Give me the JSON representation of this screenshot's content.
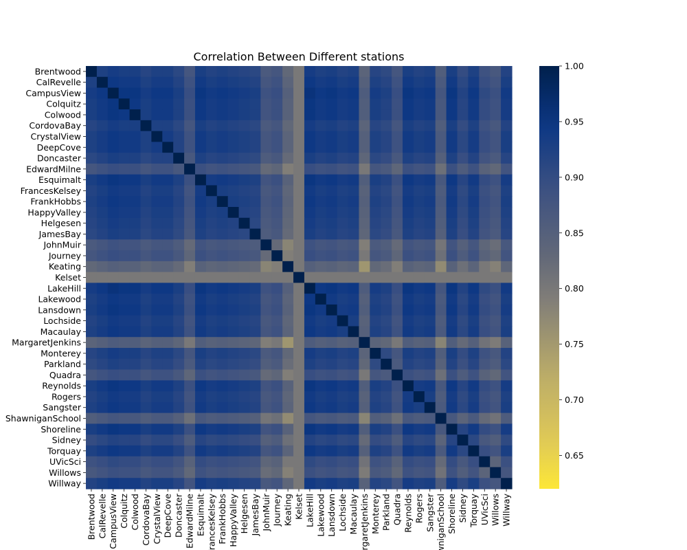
{
  "chart_data": {
    "type": "heatmap",
    "title": "Correlation Between Different stations",
    "xlabel": "",
    "ylabel": "",
    "labels": [
      "Brentwood",
      "CalRevelle",
      "CampusView",
      "Colquitz",
      "Colwood",
      "CordovaBay",
      "CrystalView",
      "DeepCove",
      "Doncaster",
      "EdwardMilne",
      "Esquimalt",
      "FrancesKelsey",
      "FrankHobbs",
      "HappyValley",
      "Helgesen",
      "JamesBay",
      "JohnMuir",
      "Journey",
      "Keating",
      "Kelset",
      "LakeHill",
      "Lakewood",
      "Lansdown",
      "Lochside",
      "Macaulay",
      "MargaretJenkins",
      "Monterey",
      "Parkland",
      "Quadra",
      "Reynolds",
      "Rogers",
      "Sangster",
      "ShawniganSchool",
      "Shoreline",
      "Sidney",
      "Torquay",
      "UVicSci",
      "Willows",
      "Willway"
    ],
    "x_tick_labels": [
      "Brentwood",
      "CalRevelle",
      "CampusView",
      "Colquitz",
      "Colwood",
      "CordovaBay",
      "CrystalView",
      "DeepCove",
      "Doncaster",
      "EdwardMilne",
      "Esquimalt",
      "FrancesKelsey",
      "FrankHobbs",
      "HappyValley",
      "Helgesen",
      "JamesBay",
      "JohnMuir",
      "Journey",
      "Keating",
      "Kelset",
      "LakeHill",
      "Lakewood",
      "Lansdown",
      "Lochside",
      "Macaulay",
      "MargaretJenkins",
      "Monterey",
      "Parkland",
      "Quadra",
      "Reynolds",
      "Rogers",
      "Sangster",
      "ShawniganSchool",
      "Shoreline",
      "Sidney",
      "Torquay",
      "UVicSci",
      "Willows",
      "Willway"
    ],
    "y_tick_labels": [
      "Brentwood",
      "CalRevelle",
      "CampusView",
      "Colquitz",
      "Colwood",
      "CordovaBay",
      "CrystalView",
      "DeepCove",
      "Doncaster",
      "EdwardMilne",
      "Esquimalt",
      "FrancesKelsey",
      "FrankHobbs",
      "HappyValley",
      "Helgesen",
      "JamesBay",
      "JohnMuir",
      "Journey",
      "Keating",
      "Kelset",
      "LakeHill",
      "Lakewood",
      "Lansdown",
      "Lochside",
      "Macaulay",
      "MargaretJenkins",
      "Monterey",
      "Parkland",
      "Quadra",
      "Reynolds",
      "Rogers",
      "Sangster",
      "ShawniganSchool",
      "Shoreline",
      "Sidney",
      "Torquay",
      "UVicSci",
      "Willows",
      "Willway"
    ],
    "colorbar": {
      "vmin": 0.62,
      "vmax": 1.0,
      "ticks": [
        0.65,
        0.7,
        0.75,
        0.8,
        0.85,
        0.9,
        0.95,
        1.0
      ],
      "tick_labels": [
        "0.65",
        "0.70",
        "0.75",
        "0.80",
        "0.85",
        "0.90",
        "0.95",
        "1.00"
      ],
      "colormap": "cividis_r",
      "color_low": "#fde737",
      "color_high": "#00204c"
    },
    "station_profile": {
      "Brentwood": 0.955,
      "CalRevelle": 0.965,
      "CampusView": 0.975,
      "Colquitz": 0.97,
      "Colwood": 0.97,
      "CordovaBay": 0.955,
      "CrystalView": 0.965,
      "DeepCove": 0.965,
      "Doncaster": 0.95,
      "EdwardMilne": 0.915,
      "Esquimalt": 0.97,
      "FrancesKelsey": 0.96,
      "FrankHobbs": 0.965,
      "HappyValley": 0.96,
      "Helgesen": 0.955,
      "JamesBay": 0.95,
      "JohnMuir": 0.905,
      "Journey": 0.915,
      "Keating": 0.87,
      "Kelset": 0.82,
      "LakeHill": 0.975,
      "Lakewood": 0.965,
      "Lansdown": 0.97,
      "Lochside": 0.96,
      "Macaulay": 0.965,
      "MargaretJenkins": 0.88,
      "Monterey": 0.955,
      "Parkland": 0.945,
      "Quadra": 0.915,
      "Reynolds": 0.97,
      "Rogers": 0.96,
      "Sangster": 0.965,
      "ShawniganSchool": 0.895,
      "Shoreline": 0.97,
      "Sidney": 0.94,
      "Torquay": 0.965,
      "UVicSci": 0.925,
      "Willows": 0.91,
      "Willway": 0.96
    },
    "diagonal": 1.0
  }
}
